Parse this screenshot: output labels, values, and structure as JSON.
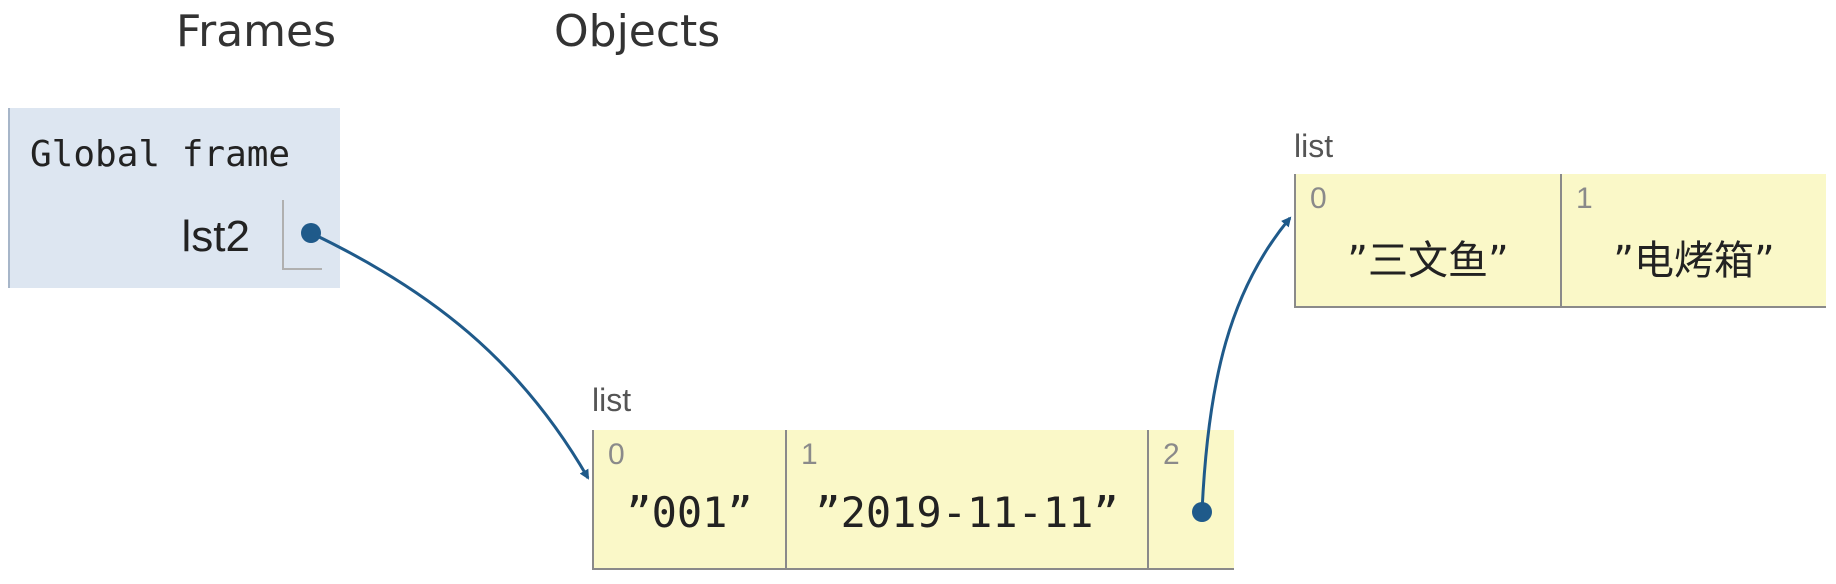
{
  "headings": {
    "frames": "Frames",
    "objects": "Objects"
  },
  "global_frame": {
    "title": "Global frame",
    "variables": [
      {
        "name": "lst2"
      }
    ]
  },
  "objects": [
    {
      "type_label": "list",
      "items": [
        {
          "index": "0",
          "value": "”001”"
        },
        {
          "index": "1",
          "value": "”2019-11-11”"
        },
        {
          "index": "2",
          "value": ""
        }
      ]
    },
    {
      "type_label": "list",
      "items": [
        {
          "index": "0",
          "value": "”三文鱼”"
        },
        {
          "index": "1",
          "value": "”电烤箱”"
        }
      ]
    }
  ],
  "colors": {
    "frame_bg": "#dde6f1",
    "list_bg": "#faf8c8",
    "arrow": "#1f5a8a"
  }
}
